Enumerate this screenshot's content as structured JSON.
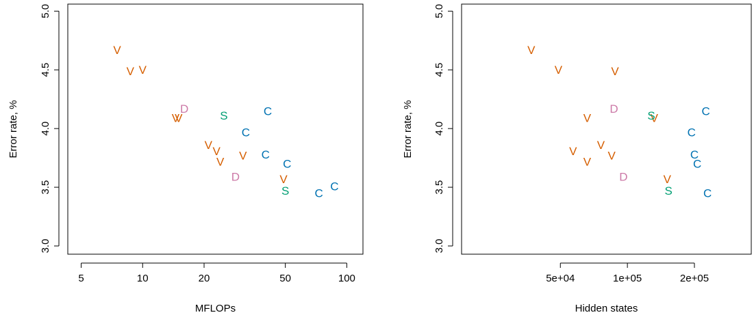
{
  "figure": {
    "colors": {
      "V": "#D55E00",
      "D": "#CC79A7",
      "S": "#009E73",
      "C": "#0072B2"
    }
  },
  "chart_data": [
    {
      "type": "scatter",
      "title": "",
      "xlabel": "MFLOPs",
      "ylabel": "Error rate, %",
      "xscale": "log",
      "xlim": [
        4.3,
        120
      ],
      "ylim": [
        2.93,
        5.06
      ],
      "xticks": [
        5,
        10,
        20,
        50,
        100
      ],
      "xtick_labels": [
        "5",
        "10",
        "20",
        "50",
        "100"
      ],
      "yticks": [
        3.0,
        3.5,
        4.0,
        4.5,
        5.0
      ],
      "ytick_labels": [
        "3.0",
        "3.5",
        "4.0",
        "4.5",
        "5.0"
      ],
      "grid": false,
      "points": [
        {
          "x": 7.5,
          "y": 4.67,
          "label": "V"
        },
        {
          "x": 8.7,
          "y": 4.49,
          "label": "V"
        },
        {
          "x": 10.0,
          "y": 4.5,
          "label": "V"
        },
        {
          "x": 14.5,
          "y": 4.09,
          "label": "V"
        },
        {
          "x": 15.0,
          "y": 4.09,
          "label": "V"
        },
        {
          "x": 21.0,
          "y": 3.86,
          "label": "V"
        },
        {
          "x": 23.0,
          "y": 3.81,
          "label": "V"
        },
        {
          "x": 24.0,
          "y": 3.72,
          "label": "V"
        },
        {
          "x": 31.0,
          "y": 3.77,
          "label": "V"
        },
        {
          "x": 49.0,
          "y": 3.57,
          "label": "V"
        },
        {
          "x": 16.0,
          "y": 4.17,
          "label": "D"
        },
        {
          "x": 28.5,
          "y": 3.59,
          "label": "D"
        },
        {
          "x": 25.0,
          "y": 4.11,
          "label": "S"
        },
        {
          "x": 50.0,
          "y": 3.47,
          "label": "S"
        },
        {
          "x": 32.0,
          "y": 3.97,
          "label": "C"
        },
        {
          "x": 41.0,
          "y": 4.15,
          "label": "C"
        },
        {
          "x": 40.0,
          "y": 3.78,
          "label": "C"
        },
        {
          "x": 51.0,
          "y": 3.7,
          "label": "C"
        },
        {
          "x": 73.0,
          "y": 3.45,
          "label": "C"
        },
        {
          "x": 87.0,
          "y": 3.51,
          "label": "C"
        }
      ]
    },
    {
      "type": "scatter",
      "title": "",
      "xlabel": "Hidden states",
      "ylabel": "Error rate, %",
      "xscale": "log",
      "xlim": [
        18000,
        360000
      ],
      "ylim": [
        2.93,
        5.06
      ],
      "xticks": [
        50000,
        100000,
        200000
      ],
      "xtick_labels": [
        "5e+04",
        "1e+05",
        "2e+05"
      ],
      "yticks": [
        3.0,
        3.5,
        4.0,
        4.5,
        5.0
      ],
      "ytick_labels": [
        "3.0",
        "3.5",
        "4.0",
        "4.5",
        "5.0"
      ],
      "grid": false,
      "points": [
        {
          "x": 37000,
          "y": 4.67,
          "label": "V"
        },
        {
          "x": 49000,
          "y": 4.5,
          "label": "V"
        },
        {
          "x": 88000,
          "y": 4.49,
          "label": "V"
        },
        {
          "x": 66000,
          "y": 4.09,
          "label": "V"
        },
        {
          "x": 57000,
          "y": 3.81,
          "label": "V"
        },
        {
          "x": 66000,
          "y": 3.72,
          "label": "V"
        },
        {
          "x": 76000,
          "y": 3.86,
          "label": "V"
        },
        {
          "x": 85000,
          "y": 3.77,
          "label": "V"
        },
        {
          "x": 132000,
          "y": 4.09,
          "label": "V"
        },
        {
          "x": 151000,
          "y": 3.57,
          "label": "V"
        },
        {
          "x": 87000,
          "y": 4.17,
          "label": "D"
        },
        {
          "x": 96000,
          "y": 3.59,
          "label": "D"
        },
        {
          "x": 128000,
          "y": 4.11,
          "label": "S"
        },
        {
          "x": 153000,
          "y": 3.47,
          "label": "S"
        },
        {
          "x": 194000,
          "y": 3.97,
          "label": "C"
        },
        {
          "x": 225000,
          "y": 4.15,
          "label": "C"
        },
        {
          "x": 200000,
          "y": 3.78,
          "label": "C"
        },
        {
          "x": 206000,
          "y": 3.7,
          "label": "C"
        },
        {
          "x": 229000,
          "y": 3.45,
          "label": "C"
        }
      ]
    }
  ]
}
